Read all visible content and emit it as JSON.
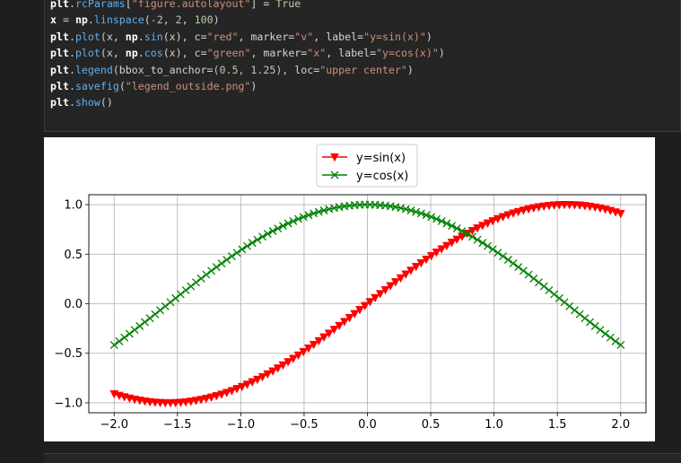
{
  "code_lines": [
    {
      "parts": [
        {
          "t": "plt",
          "c": "b"
        },
        {
          "t": "."
        },
        {
          "t": "rcParams",
          "c": "fn"
        },
        {
          "t": "["
        },
        {
          "t": "\"figure.autolayout\"",
          "c": "str"
        },
        {
          "t": "] = "
        },
        {
          "t": "True",
          "c": "num"
        }
      ]
    },
    {
      "parts": [
        {
          "t": "x",
          "c": "b"
        },
        {
          "t": " = "
        },
        {
          "t": "np",
          "c": "b"
        },
        {
          "t": "."
        },
        {
          "t": "linspace",
          "c": "fn"
        },
        {
          "t": "("
        },
        {
          "t": "-2",
          "c": "num"
        },
        {
          "t": ", "
        },
        {
          "t": "2",
          "c": "num"
        },
        {
          "t": ", "
        },
        {
          "t": "100",
          "c": "num"
        },
        {
          "t": ")"
        }
      ]
    },
    {
      "parts": [
        {
          "t": "plt",
          "c": "b"
        },
        {
          "t": "."
        },
        {
          "t": "plot",
          "c": "fn"
        },
        {
          "t": "(x, "
        },
        {
          "t": "np",
          "c": "b"
        },
        {
          "t": "."
        },
        {
          "t": "sin",
          "c": "fn"
        },
        {
          "t": "(x), c="
        },
        {
          "t": "\"red\"",
          "c": "str"
        },
        {
          "t": ", marker="
        },
        {
          "t": "\"v\"",
          "c": "str"
        },
        {
          "t": ", label="
        },
        {
          "t": "\"y=sin(x)\"",
          "c": "str"
        },
        {
          "t": ")"
        }
      ]
    },
    {
      "parts": [
        {
          "t": "plt",
          "c": "b"
        },
        {
          "t": "."
        },
        {
          "t": "plot",
          "c": "fn"
        },
        {
          "t": "(x, "
        },
        {
          "t": "np",
          "c": "b"
        },
        {
          "t": "."
        },
        {
          "t": "cos",
          "c": "fn"
        },
        {
          "t": "(x), c="
        },
        {
          "t": "\"green\"",
          "c": "str"
        },
        {
          "t": ", marker="
        },
        {
          "t": "\"x\"",
          "c": "str"
        },
        {
          "t": ", label="
        },
        {
          "t": "\"y=cos(x)\"",
          "c": "str"
        },
        {
          "t": ")"
        }
      ]
    },
    {
      "parts": [
        {
          "t": "plt",
          "c": "b"
        },
        {
          "t": "."
        },
        {
          "t": "legend",
          "c": "fn"
        },
        {
          "t": "(bbox_to_anchor="
        },
        {
          "t": "(0.5, 1.25)",
          "c": "num"
        },
        {
          "t": ", loc="
        },
        {
          "t": "\"upper center\"",
          "c": "str"
        },
        {
          "t": ")"
        }
      ]
    },
    {
      "parts": [
        {
          "t": "plt",
          "c": "b"
        },
        {
          "t": "."
        },
        {
          "t": "savefig",
          "c": "fn"
        },
        {
          "t": "("
        },
        {
          "t": "\"legend_outside.png\"",
          "c": "str"
        },
        {
          "t": ")"
        }
      ]
    },
    {
      "parts": [
        {
          "t": "plt",
          "c": "b"
        },
        {
          "t": "."
        },
        {
          "t": "show",
          "c": "fn"
        },
        {
          "t": "()"
        }
      ]
    }
  ],
  "colors": {
    "sin": "#ff0000",
    "cos": "#008000"
  },
  "chart_data": {
    "type": "line",
    "x_range": [
      -2,
      2
    ],
    "num_points": 100,
    "series": [
      {
        "name": "y=sin(x)",
        "function": "sin",
        "marker": "triangle-down",
        "color": "red"
      },
      {
        "name": "y=cos(x)",
        "function": "cos",
        "marker": "x",
        "color": "green"
      }
    ],
    "xlim": [
      -2.2,
      2.2
    ],
    "ylim": [
      -1.1,
      1.1
    ],
    "xticks": [
      -2.0,
      -1.5,
      -1.0,
      -0.5,
      0.0,
      0.5,
      1.0,
      1.5,
      2.0
    ],
    "xtick_labels": [
      "−2.0",
      "−1.5",
      "−1.0",
      "−0.5",
      "0.0",
      "0.5",
      "1.0",
      "1.5",
      "2.0"
    ],
    "yticks": [
      1.0,
      0.5,
      0.0,
      -0.5,
      -1.0
    ],
    "ytick_labels": [
      "1.0",
      "0.5",
      "0.0",
      "−0.5",
      "−1.0"
    ],
    "grid": true,
    "legend_placement": "top-center"
  }
}
